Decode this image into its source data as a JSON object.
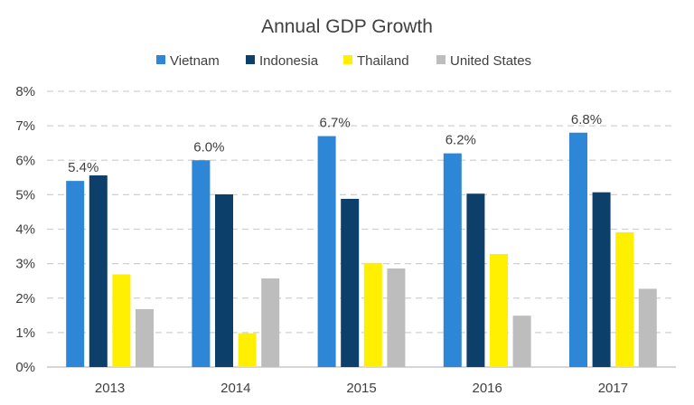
{
  "chart_data": {
    "type": "bar",
    "title": "Annual GDP Growth",
    "xlabel": "",
    "ylabel": "",
    "categories": [
      "2013",
      "2014",
      "2015",
      "2016",
      "2017"
    ],
    "series": [
      {
        "name": "Vietnam",
        "color": "#2e86d6",
        "values": [
          5.4,
          6.0,
          6.7,
          6.2,
          6.8
        ]
      },
      {
        "name": "Indonesia",
        "color": "#0d3f6b",
        "values": [
          5.56,
          5.01,
          4.88,
          5.03,
          5.07
        ]
      },
      {
        "name": "Thailand",
        "color": "#ffef00",
        "values": [
          2.69,
          0.98,
          3.02,
          3.28,
          3.91
        ]
      },
      {
        "name": "United States",
        "color": "#bdbdbd",
        "values": [
          1.68,
          2.57,
          2.86,
          1.49,
          2.27
        ]
      }
    ],
    "data_labels": {
      "series": "Vietnam",
      "texts": [
        "5.4%",
        "6.0%",
        "6.7%",
        "6.2%",
        "6.8%"
      ]
    },
    "y_ticks": [
      "0%",
      "1%",
      "2%",
      "3%",
      "4%",
      "5%",
      "6%",
      "7%",
      "8%"
    ],
    "ylim": [
      0,
      8
    ],
    "grid": true,
    "gridline_style": "dashed",
    "gridline_color": "#d0d0d0",
    "legend_position": "top-center"
  }
}
